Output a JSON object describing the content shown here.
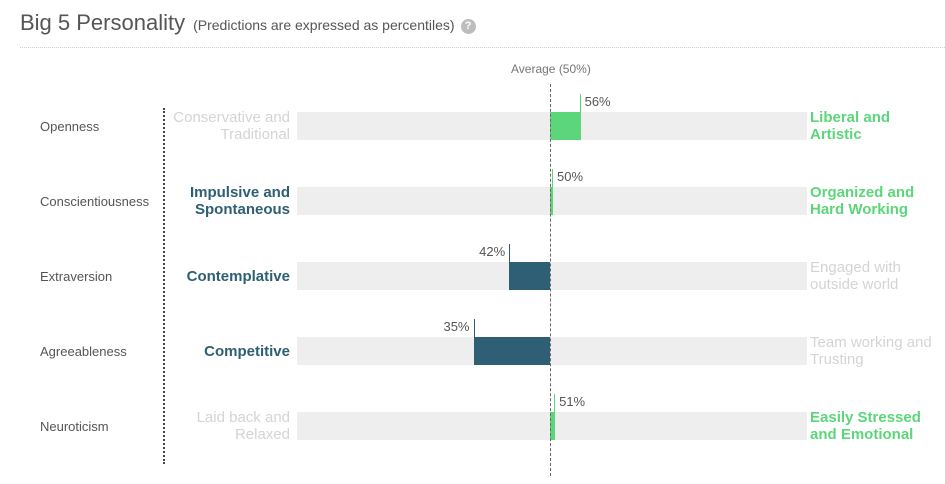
{
  "header": {
    "title": "Big 5 Personality",
    "subtitle": "(Predictions are expressed as percentiles)",
    "help_icon": "question-circle-icon"
  },
  "average_label": "Average (50%)",
  "colors": {
    "above_average": "#5cd67a",
    "below_average": "#2e5f74",
    "track": "#eeeeee",
    "faded_text": "#d4d4d4"
  },
  "chart_data": {
    "type": "bar",
    "orientation": "horizontal-diverging",
    "title": "Big 5 Personality",
    "subtitle": "(Predictions are expressed as percentiles)",
    "baseline": 50,
    "baseline_label": "Average (50%)",
    "xlim": [
      0,
      100
    ],
    "categories": [
      "Openness",
      "Conscientiousness",
      "Extraversion",
      "Agreeableness",
      "Neuroticism"
    ],
    "values": [
      56,
      50,
      42,
      35,
      51
    ],
    "value_labels": [
      "56%",
      "50%",
      "42%",
      "35%",
      "51%"
    ],
    "left_poles": [
      "Conservative and Traditional",
      "Impulsive and Spontaneous",
      "Contemplative",
      "Competitive",
      "Laid back and Relaxed"
    ],
    "right_poles": [
      "Liberal and Artistic",
      "Organized and Hard Working",
      "Engaged with outside world",
      "Team working and Trusting",
      "Easily Stressed and Emotional"
    ],
    "highlighted_pole": [
      "right",
      "both",
      "left",
      "left",
      "right"
    ]
  },
  "rows": [
    {
      "trait": "Openness",
      "left_line1": "Conservative and",
      "left_line2": "Traditional",
      "right_line1": "Liberal and",
      "right_line2": "Artistic",
      "value_label": "56%"
    },
    {
      "trait": "Conscientiousness",
      "left_line1": "Impulsive and",
      "left_line2": "Spontaneous",
      "right_line1": "Organized and",
      "right_line2": "Hard Working",
      "value_label": "50%"
    },
    {
      "trait": "Extraversion",
      "left_line1": "Contemplative",
      "left_line2": "",
      "right_line1": "Engaged with",
      "right_line2": "outside world",
      "value_label": "42%"
    },
    {
      "trait": "Agreeableness",
      "left_line1": "Competitive",
      "left_line2": "",
      "right_line1": "Team working and",
      "right_line2": "Trusting",
      "value_label": "35%"
    },
    {
      "trait": "Neuroticism",
      "left_line1": "Laid back and",
      "left_line2": "Relaxed",
      "right_line1": "Easily Stressed",
      "right_line2": "and Emotional",
      "value_label": "51%"
    }
  ]
}
